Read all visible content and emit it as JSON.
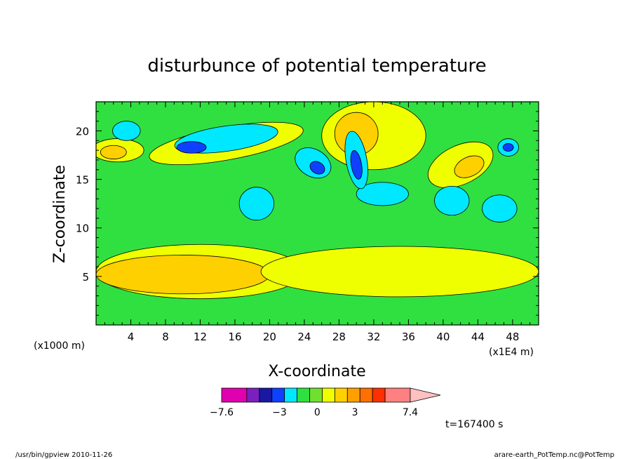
{
  "chart_data": {
    "type": "heatmap",
    "title": "disturbunce of potential temperature",
    "xlabel": "X-coordinate",
    "ylabel": "Z-coordinate",
    "x_scale_note": "(x1E4 m)",
    "y_scale_note": "(x1000 m)",
    "xlim": [
      0,
      51
    ],
    "ylim": [
      0,
      23
    ],
    "x_ticks": [
      4,
      8,
      12,
      16,
      20,
      24,
      28,
      32,
      36,
      40,
      44,
      48
    ],
    "y_ticks": [
      5,
      10,
      15,
      20
    ],
    "colorbar": {
      "labels": [
        {
          "value": -7.6,
          "text": "−7.6"
        },
        {
          "value": -3,
          "text": "−3"
        },
        {
          "value": 0,
          "text": "0"
        },
        {
          "value": 3,
          "text": "3"
        },
        {
          "value": 7.4,
          "text": "7.4"
        }
      ],
      "colors": [
        "#e000b0",
        "#7a20c0",
        "#1818a0",
        "#1040ff",
        "#00e8ff",
        "#30e040",
        "#70e030",
        "#f0ff00",
        "#ffd000",
        "#ffa000",
        "#ff7000",
        "#ff3000",
        "#ff8080",
        "#ffc0c0"
      ],
      "bin_widths": [
        2,
        1,
        1,
        1,
        1,
        1,
        1,
        1,
        1,
        1,
        1,
        1,
        2,
        2.4
      ],
      "min": -7.6,
      "max": 7.4
    },
    "background_level_color": "#30e040",
    "features": [
      {
        "kind": "warm",
        "level": 1,
        "cx": 12,
        "cy": 5.5,
        "rx": 12,
        "ry": 2.8,
        "rot": 0
      },
      {
        "kind": "warm",
        "level": 2,
        "cx": 10,
        "cy": 5.2,
        "rx": 10,
        "ry": 2.0,
        "rot": 0
      },
      {
        "kind": "warm",
        "level": 1,
        "cx": 35,
        "cy": 5.5,
        "rx": 16,
        "ry": 2.6,
        "rot": 0
      },
      {
        "kind": "warm",
        "level": 1,
        "cx": 15,
        "cy": 18.7,
        "rx": 9,
        "ry": 1.7,
        "rot": -10
      },
      {
        "kind": "warm",
        "level": 1,
        "cx": 32,
        "cy": 19.5,
        "rx": 6,
        "ry": 3.5,
        "rot": 0
      },
      {
        "kind": "warm",
        "level": 2,
        "cx": 30,
        "cy": 19.7,
        "rx": 2.5,
        "ry": 2.2,
        "rot": 0
      },
      {
        "kind": "warm",
        "level": 1,
        "cx": 42,
        "cy": 16.5,
        "rx": 4,
        "ry": 2.0,
        "rot": -25
      },
      {
        "kind": "warm",
        "level": 2,
        "cx": 43,
        "cy": 16.3,
        "rx": 1.8,
        "ry": 1.0,
        "rot": -25
      },
      {
        "kind": "warm",
        "level": 1,
        "cx": 2.5,
        "cy": 18,
        "rx": 3,
        "ry": 1.2,
        "rot": 0
      },
      {
        "kind": "warm",
        "level": 2,
        "cx": 2,
        "cy": 17.8,
        "rx": 1.5,
        "ry": 0.7,
        "rot": 0
      },
      {
        "kind": "cool",
        "level": 1,
        "cx": 15,
        "cy": 19.2,
        "rx": 6,
        "ry": 1.3,
        "rot": -8
      },
      {
        "kind": "cool",
        "level": 2,
        "cx": 11,
        "cy": 18.3,
        "rx": 1.7,
        "ry": 0.6,
        "rot": 0
      },
      {
        "kind": "cool",
        "level": 1,
        "cx": 3.5,
        "cy": 20,
        "rx": 1.6,
        "ry": 1.0,
        "rot": 0
      },
      {
        "kind": "cool",
        "level": 1,
        "cx": 25,
        "cy": 16.7,
        "rx": 2.2,
        "ry": 1.4,
        "rot": 30
      },
      {
        "kind": "cool",
        "level": 2,
        "cx": 25.5,
        "cy": 16.2,
        "rx": 0.9,
        "ry": 0.6,
        "rot": 30
      },
      {
        "kind": "cool",
        "level": 1,
        "cx": 18.5,
        "cy": 12.5,
        "rx": 2.0,
        "ry": 1.7,
        "rot": 0
      },
      {
        "kind": "cool",
        "level": 1,
        "cx": 33,
        "cy": 13.5,
        "rx": 3,
        "ry": 1.2,
        "rot": 0
      },
      {
        "kind": "cool",
        "level": 1,
        "cx": 41,
        "cy": 12.8,
        "rx": 2,
        "ry": 1.5,
        "rot": 0
      },
      {
        "kind": "cool",
        "level": 1,
        "cx": 46.5,
        "cy": 12,
        "rx": 2.0,
        "ry": 1.4,
        "rot": 0
      },
      {
        "kind": "cool",
        "level": 1,
        "cx": 47.5,
        "cy": 18.3,
        "rx": 1.2,
        "ry": 0.9,
        "rot": 0
      },
      {
        "kind": "cool",
        "level": 2,
        "cx": 47.5,
        "cy": 18.3,
        "rx": 0.6,
        "ry": 0.4,
        "rot": 0
      },
      {
        "kind": "cool",
        "level": 1,
        "cx": 30,
        "cy": 17,
        "rx": 1.2,
        "ry": 3.0,
        "rot": -10
      },
      {
        "kind": "cool",
        "level": 2,
        "cx": 30,
        "cy": 16.5,
        "rx": 0.6,
        "ry": 1.5,
        "rot": -10
      }
    ],
    "annotations": [
      "t=167400 s"
    ]
  },
  "footer": {
    "left": "/usr/bin/gpview   2010-11-26",
    "right": "arare-earth_PotTemp.nc@PotTemp"
  }
}
